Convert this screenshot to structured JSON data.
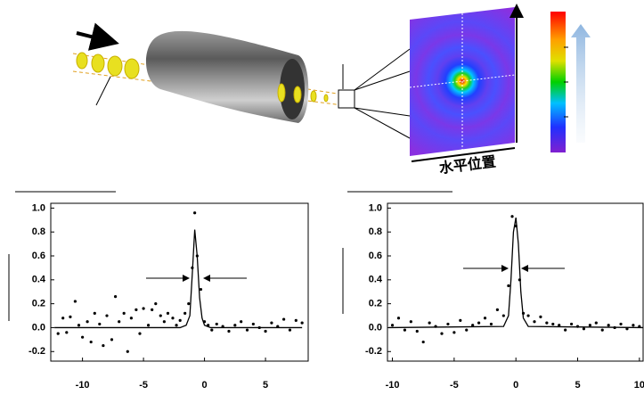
{
  "diagram": {
    "axis_label": "水平位置"
  },
  "chart_data": [
    {
      "type": "scatter",
      "xlim": [
        -12.6,
        8.5
      ],
      "ylim": [
        -0.28,
        1.04
      ],
      "xticks": [
        -10,
        -5,
        0,
        5
      ],
      "yticks": [
        -0.2,
        {
          "value": 0,
          "label": "0.0"
        },
        0.2,
        0.4,
        0.6,
        0.8,
        {
          "value": 1,
          "label": "1.0"
        }
      ],
      "series": [
        {
          "mode": "markers",
          "color": "#000000",
          "x": [
            -12,
            -11.6,
            -11.3,
            -11,
            -10.6,
            -10.3,
            -10,
            -9.6,
            -9.3,
            -9,
            -8.6,
            -8.3,
            -8,
            -7.6,
            -7.3,
            -7,
            -6.6,
            -6.3,
            -6,
            -5.6,
            -5.3,
            -5,
            -4.6,
            -4.3,
            -4,
            -3.6,
            -3.3,
            -3,
            -2.6,
            -2.3,
            -2,
            -1.6,
            -1.3,
            -1,
            -0.8,
            -0.6,
            -0.3,
            0,
            0.3,
            0.6,
            1,
            1.5,
            2,
            2.5,
            3,
            3.5,
            4,
            4.5,
            5,
            5.5,
            6,
            6.5,
            7,
            7.5,
            8
          ],
          "values": [
            -0.05,
            0.08,
            -0.04,
            0.09,
            0.22,
            0.02,
            -0.08,
            0.05,
            -0.12,
            0.12,
            0.03,
            -0.15,
            0.1,
            -0.1,
            0.26,
            0.05,
            0.12,
            -0.2,
            0.08,
            0.15,
            -0.05,
            0.16,
            0.02,
            0.15,
            0.2,
            0.1,
            0.05,
            0.12,
            0.08,
            0.02,
            0.06,
            0.12,
            0.2,
            0.5,
            0.96,
            0.6,
            0.32,
            0.05,
            0.02,
            -0.02,
            0.03,
            0.01,
            -0.03,
            0.02,
            0.05,
            -0.02,
            0.03,
            0,
            -0.03,
            0.04,
            0.01,
            0.07,
            -0.02,
            0.06,
            0.04
          ]
        },
        {
          "mode": "line",
          "color": "#000000",
          "x": [
            -12.3,
            -2,
            -1.5,
            -1.2,
            -1,
            -0.8,
            -0.6,
            -0.4,
            -0.2,
            0,
            0.5,
            8
          ],
          "values": [
            0,
            0,
            0.02,
            0.1,
            0.45,
            0.82,
            0.6,
            0.25,
            0.08,
            0.02,
            0,
            0
          ]
        }
      ]
    },
    {
      "type": "scatter",
      "xlim": [
        -10.4,
        10.3
      ],
      "ylim": [
        -0.28,
        1.04
      ],
      "xticks": [
        -10,
        -5,
        0,
        5,
        10
      ],
      "yticks": [
        -0.2,
        {
          "value": 0,
          "label": "0.0"
        },
        0.2,
        0.4,
        0.6,
        0.8,
        {
          "value": 1,
          "label": "1.0"
        }
      ],
      "series": [
        {
          "mode": "markers",
          "color": "#000000",
          "x": [
            -10,
            -9.5,
            -9,
            -8.5,
            -8,
            -7.5,
            -7,
            -6.5,
            -6,
            -5.5,
            -5,
            -4.5,
            -4,
            -3.5,
            -3,
            -2.5,
            -2,
            -1.5,
            -1,
            -0.6,
            -0.3,
            0,
            0.3,
            0.6,
            1,
            1.5,
            2,
            2.5,
            3,
            3.5,
            4,
            4.5,
            5,
            5.5,
            6,
            6.5,
            7,
            7.5,
            8,
            8.5,
            9,
            9.5,
            10
          ],
          "values": [
            0.02,
            0.08,
            -0.02,
            0.05,
            -0.03,
            -0.12,
            0.04,
            0.01,
            -0.05,
            0.03,
            -0.04,
            0.06,
            -0.02,
            0.02,
            0.04,
            0.08,
            0.03,
            0.15,
            0.1,
            0.35,
            0.93,
            0.85,
            0.4,
            0.12,
            0.1,
            0.05,
            0.09,
            0.04,
            0.03,
            0.02,
            -0.02,
            0.03,
            0.01,
            -0.01,
            0.02,
            0.04,
            -0.02,
            0.02,
            0,
            0.03,
            -0.01,
            0.02,
            0.01
          ]
        },
        {
          "mode": "line",
          "color": "#000000",
          "x": [
            -10.3,
            -1,
            -0.6,
            -0.4,
            -0.2,
            0,
            0.2,
            0.4,
            0.6,
            1,
            10.3
          ],
          "values": [
            0,
            0.01,
            0.1,
            0.4,
            0.8,
            0.92,
            0.7,
            0.3,
            0.08,
            0.01,
            0
          ]
        }
      ]
    }
  ]
}
